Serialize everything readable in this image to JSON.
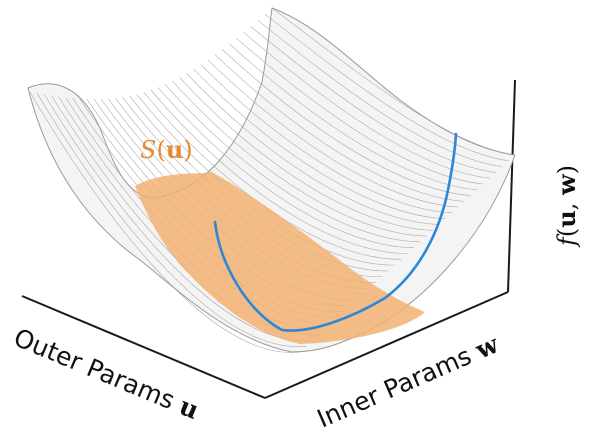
{
  "figure": {
    "solution_set_label": {
      "script": "S",
      "open": "(",
      "var": "u",
      "close": ")",
      "color": "#e58a2e"
    },
    "z_axis_label": {
      "func": "f",
      "open": "(",
      "var1": "u",
      "sep": ", ",
      "var2": "w",
      "close": ")"
    },
    "x_axis_label": {
      "text": "Outer Params ",
      "var": "u"
    },
    "y_axis_label": {
      "text": "Inner Params ",
      "var": "w"
    },
    "colors": {
      "surface_mesh": "#9a9a9a",
      "surface_fill": "#f4f4f4",
      "solution_region": "#f2b272",
      "path_curve": "#2d87d4",
      "axes": "#1a1a1a"
    }
  }
}
